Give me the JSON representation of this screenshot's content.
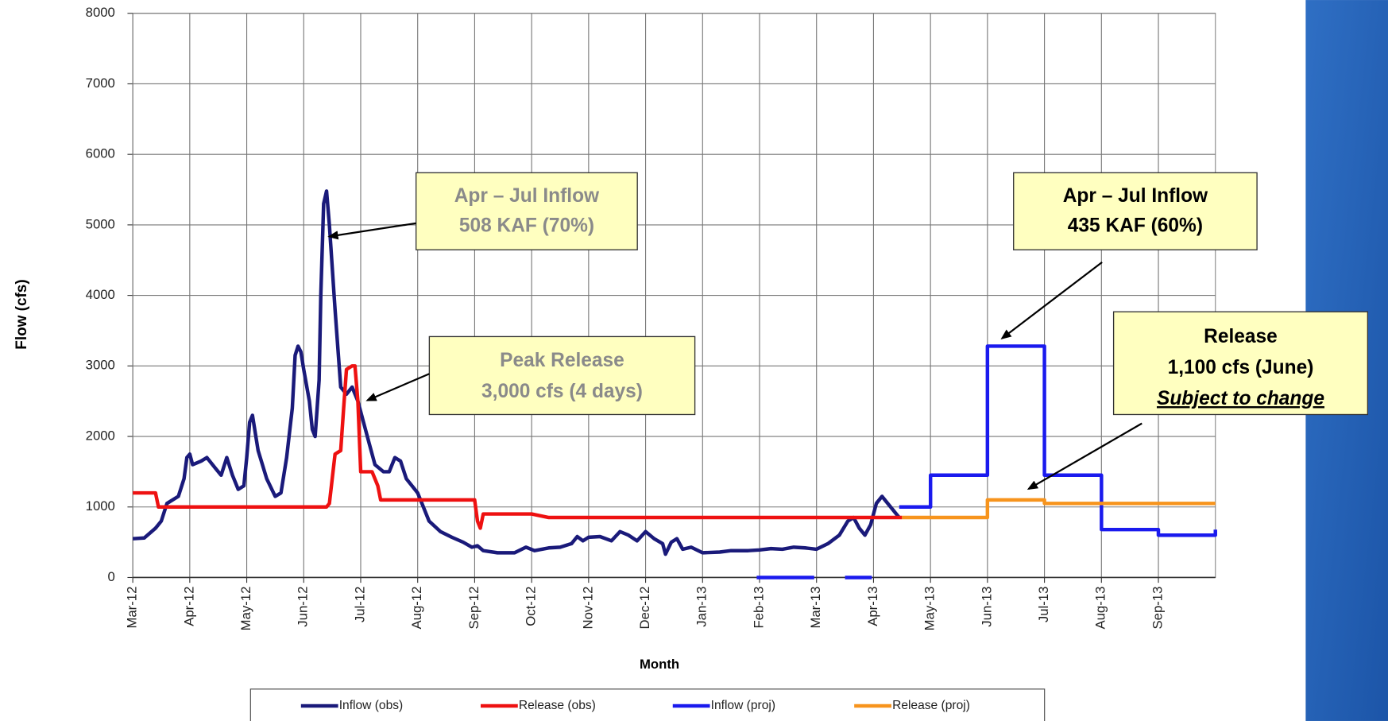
{
  "chart_data": {
    "type": "line",
    "y_label": "Flow (cfs)",
    "x_label": "Month",
    "xlim": [
      0,
      19
    ],
    "xticks": [
      {
        "value": 0,
        "label": "Mar-12"
      },
      {
        "value": 1,
        "label": "Apr-12"
      },
      {
        "value": 2,
        "label": "May-12"
      },
      {
        "value": 3,
        "label": "Jun-12"
      },
      {
        "value": 4,
        "label": "Jul-12"
      },
      {
        "value": 5,
        "label": "Aug-12"
      },
      {
        "value": 6,
        "label": "Sep-12"
      },
      {
        "value": 7,
        "label": "Oct-12"
      },
      {
        "value": 8,
        "label": "Nov-12"
      },
      {
        "value": 9,
        "label": "Dec-12"
      },
      {
        "value": 10,
        "label": "Jan-13"
      },
      {
        "value": 11,
        "label": "Feb-13"
      },
      {
        "value": 12,
        "label": "Mar-13"
      },
      {
        "value": 13,
        "label": "Apr-13"
      },
      {
        "value": 14,
        "label": "May-13"
      },
      {
        "value": 15,
        "label": "Jun-13"
      },
      {
        "value": 16,
        "label": "Jul-13"
      },
      {
        "value": 17,
        "label": "Aug-13"
      },
      {
        "value": 18,
        "label": "Sep-13"
      }
    ],
    "ylim": [
      0,
      8000
    ],
    "yticks": [
      0,
      1000,
      2000,
      3000,
      4000,
      5000,
      6000,
      7000,
      8000
    ],
    "grid": true,
    "series": [
      {
        "name": "Inflow (obs)",
        "color": "#1a1a7a",
        "x": [
          0,
          0.2,
          0.4,
          0.5,
          0.6,
          0.8,
          0.9,
          0.95,
          1.0,
          1.05,
          1.2,
          1.3,
          1.45,
          1.55,
          1.65,
          1.75,
          1.85,
          1.95,
          2.0,
          2.05,
          2.1,
          2.2,
          2.35,
          2.5,
          2.6,
          2.7,
          2.8,
          2.85,
          2.9,
          2.95,
          3.0,
          3.1,
          3.15,
          3.2,
          3.27,
          3.3,
          3.35,
          3.4,
          3.45,
          3.55,
          3.65,
          3.75,
          3.85,
          3.95,
          4.05,
          4.15,
          4.25,
          4.4,
          4.5,
          4.6,
          4.7,
          4.8,
          4.9,
          5.0,
          5.1,
          5.2,
          5.4,
          5.6,
          5.8,
          5.95,
          6.05,
          6.15,
          6.4,
          6.7,
          6.9,
          7.05,
          7.3,
          7.5,
          7.7,
          7.8,
          7.9,
          8.0,
          8.2,
          8.4,
          8.55,
          8.7,
          8.85,
          9.0,
          9.15,
          9.3,
          9.35,
          9.45,
          9.55,
          9.65,
          9.8,
          10.0,
          10.3,
          10.5,
          10.8,
          11.0,
          11.2,
          11.4,
          11.6,
          11.8,
          12.0,
          12.2,
          12.4,
          12.55,
          12.65,
          12.75,
          12.85,
          12.95,
          13.05,
          13.15,
          13.3,
          13.45
        ],
        "values": [
          550,
          560,
          700,
          800,
          1050,
          1150,
          1400,
          1700,
          1750,
          1600,
          1650,
          1700,
          1550,
          1450,
          1700,
          1450,
          1250,
          1300,
          1700,
          2200,
          2300,
          1800,
          1400,
          1150,
          1200,
          1700,
          2400,
          3150,
          3280,
          3200,
          2950,
          2500,
          2100,
          2000,
          2800,
          4000,
          5300,
          5480,
          5000,
          3800,
          2700,
          2600,
          2700,
          2500,
          2200,
          1900,
          1600,
          1500,
          1500,
          1700,
          1650,
          1400,
          1300,
          1200,
          1000,
          800,
          650,
          570,
          500,
          430,
          450,
          380,
          350,
          350,
          430,
          380,
          420,
          430,
          480,
          580,
          520,
          570,
          580,
          520,
          650,
          600,
          520,
          650,
          550,
          480,
          330,
          500,
          550,
          400,
          430,
          350,
          360,
          380,
          380,
          390,
          410,
          400,
          430,
          420,
          400,
          480,
          600,
          800,
          850,
          700,
          600,
          750,
          1050,
          1150,
          1000,
          850
        ]
      },
      {
        "name": "Release (obs)",
        "color": "#ee1111",
        "x": [
          0,
          0.4,
          0.45,
          3.4,
          3.45,
          3.5,
          3.55,
          3.65,
          3.7,
          3.75,
          3.85,
          3.9,
          3.95,
          4.0,
          4.2,
          4.3,
          4.35,
          5.0,
          6.0,
          6.05,
          6.1,
          6.15,
          7.0,
          7.3,
          13.5
        ],
        "values": [
          1200,
          1200,
          1000,
          1000,
          1050,
          1400,
          1750,
          1800,
          2400,
          2950,
          3000,
          3000,
          2500,
          1500,
          1500,
          1300,
          1100,
          1100,
          1100,
          800,
          700,
          900,
          900,
          850,
          850
        ]
      },
      {
        "name": "Inflow (proj)",
        "color": "#1a1aee",
        "x": [
          10.95,
          11.96,
          null,
          12.5,
          12.97,
          null,
          13.45,
          14.0,
          14.0,
          15.0,
          15.0,
          16.0,
          16.0,
          17.0,
          17.0,
          18.0,
          18.0,
          19.0,
          19.0
        ],
        "values": [
          0,
          0,
          null,
          0,
          0,
          null,
          1000,
          1000,
          1450,
          1450,
          3280,
          3280,
          1450,
          1450,
          680,
          680,
          600,
          600,
          680
        ]
      },
      {
        "name": "Release (proj)",
        "color": "#f7941d",
        "x": [
          13.5,
          15.0,
          15.0,
          16.0,
          16.0,
          19.0
        ],
        "values": [
          850,
          850,
          1100,
          1100,
          1050,
          1050
        ]
      }
    ],
    "annotations": [
      {
        "lines": [
          "Apr – Jul Inflow",
          "508 KAF (70%)"
        ]
      },
      {
        "lines": [
          "Peak Release",
          "3,000 cfs (4 days)"
        ]
      },
      {
        "lines": [
          "Apr – Jul Inflow",
          "435 KAF (60%)"
        ]
      },
      {
        "lines": [
          "Release",
          "1,100 cfs (June)",
          "Subject to change"
        ]
      }
    ]
  }
}
